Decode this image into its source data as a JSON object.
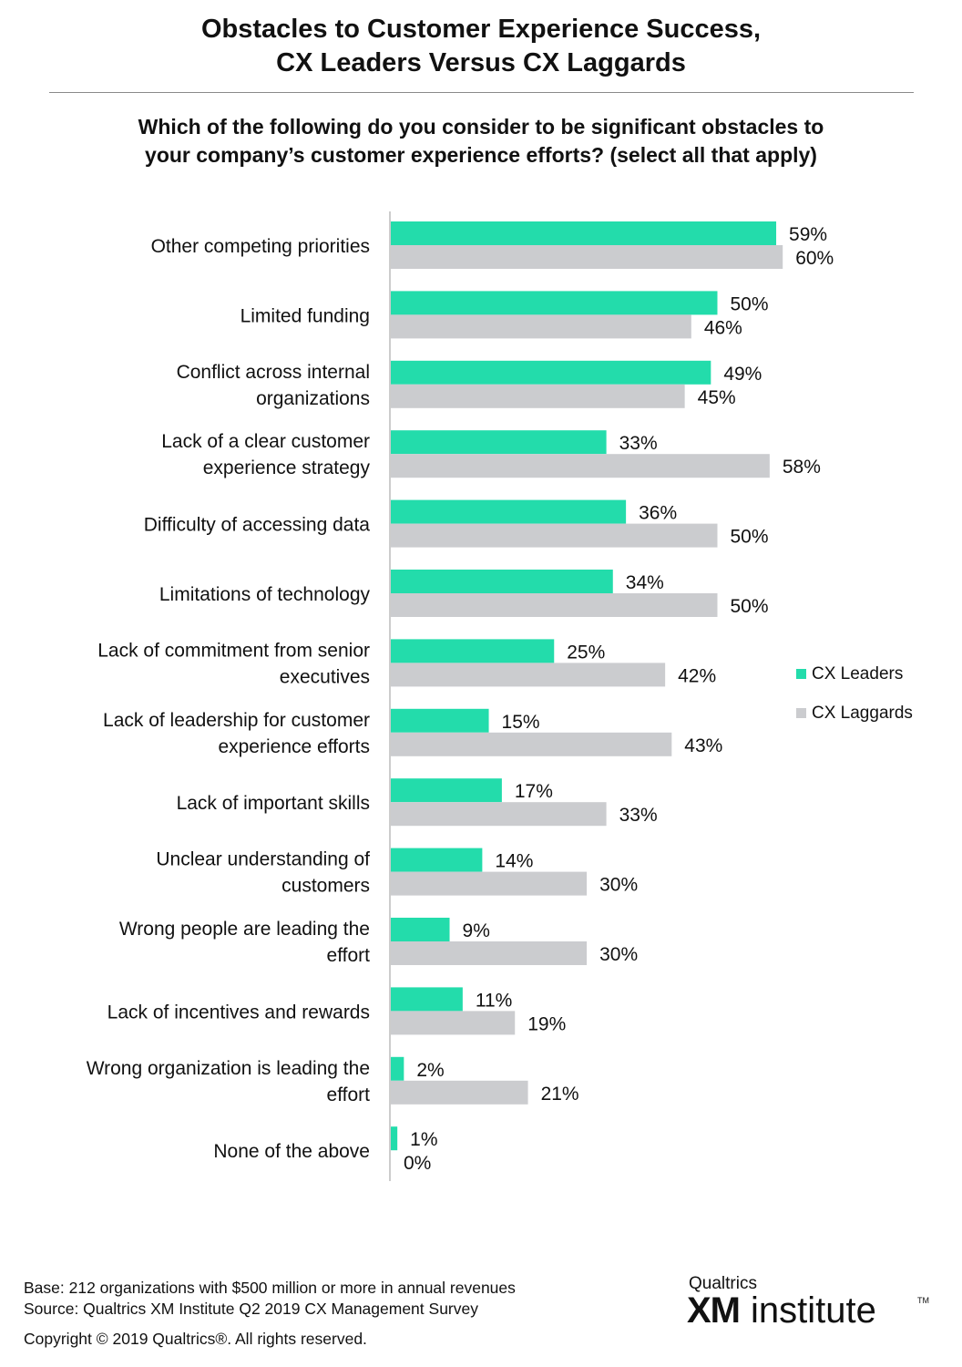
{
  "title": {
    "line1": "Obstacles to Customer Experience Success,",
    "line2": "CX Leaders Versus CX Laggards"
  },
  "question": {
    "line1": "Which of the following do you consider to be significant obstacles to",
    "line2": "your company’s customer experience efforts? (select all that apply)"
  },
  "colors": {
    "leaders": "#23dcab",
    "laggards": "#cbcccf",
    "axis": "#b0b0b0"
  },
  "chart_data": {
    "type": "bar",
    "orientation": "horizontal",
    "value_format": "percent",
    "xlim": [
      0,
      100
    ],
    "categories": [
      [
        "Other competing priorities"
      ],
      [
        "Limited funding"
      ],
      [
        "Conflict across internal",
        "organizations"
      ],
      [
        "Lack of a clear customer",
        "experience strategy"
      ],
      [
        "Difficulty of accessing data"
      ],
      [
        "Limitations of technology"
      ],
      [
        "Lack of commitment from senior",
        "executives"
      ],
      [
        "Lack of leadership for customer",
        "experience efforts"
      ],
      [
        "Lack of important skills"
      ],
      [
        "Unclear understanding of",
        "customers"
      ],
      [
        "Wrong people are leading the",
        "effort"
      ],
      [
        "Lack of incentives and rewards"
      ],
      [
        "Wrong organization is leading the",
        "effort"
      ],
      [
        "None of the above"
      ]
    ],
    "series": [
      {
        "name": "CX Leaders",
        "color": "#23dcab",
        "values": [
          59,
          50,
          49,
          33,
          36,
          34,
          25,
          15,
          17,
          14,
          9,
          11,
          2,
          1
        ]
      },
      {
        "name": "CX Laggards",
        "color": "#cbcccf",
        "values": [
          60,
          46,
          45,
          58,
          50,
          50,
          42,
          43,
          33,
          30,
          30,
          19,
          21,
          0
        ]
      }
    ],
    "legend_position": "right",
    "grid": false
  },
  "footer": {
    "base": "Base: 212 organizations with $500 million or more in annual revenues",
    "source": "Source: Qualtrics XM Institute Q2 2019 CX Management Survey",
    "copyright": "Copyright © 2019 Qualtrics®.  All rights reserved."
  },
  "logo": {
    "brand": "Qualtrics",
    "xm": "XM",
    "institute": "institute",
    "tm": "TM"
  }
}
